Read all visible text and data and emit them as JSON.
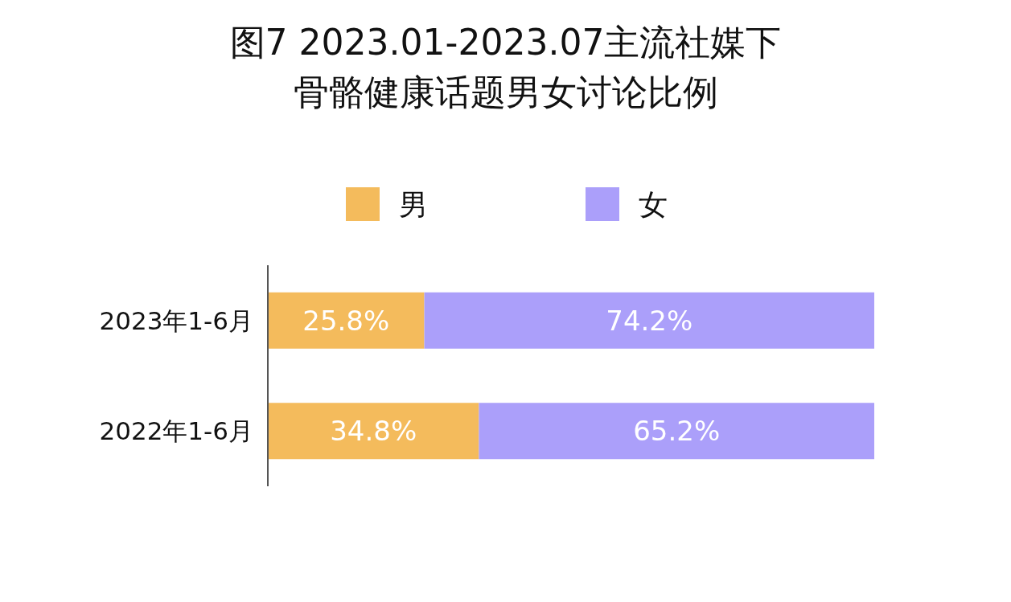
{
  "chart_data": {
    "type": "bar",
    "orientation": "horizontal",
    "stacked": true,
    "title": "图7 2023.01-2023.07主流社媒下骨骼健康话题男女讨论比例",
    "categories": [
      "2023年1-6月",
      "2022年1-6月"
    ],
    "series": [
      {
        "name": "男",
        "color": "#f4bb5c",
        "values": [
          25.8,
          34.8
        ],
        "value_labels": [
          "25.8%",
          "34.8%"
        ]
      },
      {
        "name": "女",
        "color": "#ab9ffa",
        "values": [
          74.2,
          65.2
        ],
        "value_labels": [
          "74.2%",
          "65.2%"
        ]
      }
    ],
    "xlim": [
      0,
      100
    ],
    "tick_labels": "y",
    "legend": "top"
  }
}
